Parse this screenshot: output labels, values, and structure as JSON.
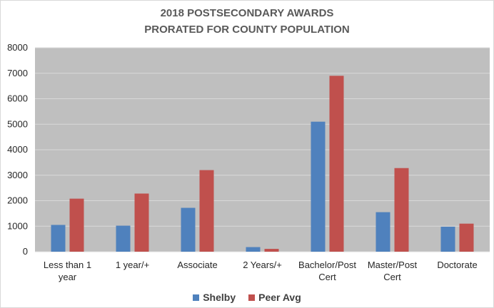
{
  "chart_data": {
    "type": "bar",
    "title_line1": "2018 POSTSECONDARY AWARDS",
    "title_line2": "PRORATED FOR COUNTY POPULATION",
    "categories": [
      [
        "Less than 1",
        "year"
      ],
      [
        "1 year/+"
      ],
      [
        "Associate"
      ],
      [
        "2 Years/+"
      ],
      [
        "Bachelor/Post",
        "Cert"
      ],
      [
        "Master/Post",
        "Cert"
      ],
      [
        "Doctorate"
      ]
    ],
    "series": [
      {
        "name": "Shelby",
        "color": "#4f81bd",
        "values": [
          1050,
          1020,
          1720,
          180,
          5100,
          1550,
          980
        ]
      },
      {
        "name": "Peer Avg",
        "color": "#c0504d",
        "values": [
          2080,
          2280,
          3200,
          110,
          6900,
          3280,
          1100
        ]
      }
    ],
    "ylim": [
      0,
      8000
    ],
    "yticks": [
      0,
      1000,
      2000,
      3000,
      4000,
      5000,
      6000,
      7000,
      8000
    ],
    "grid": true,
    "plot_background": "#bfbfbf",
    "legend_position": "bottom"
  }
}
